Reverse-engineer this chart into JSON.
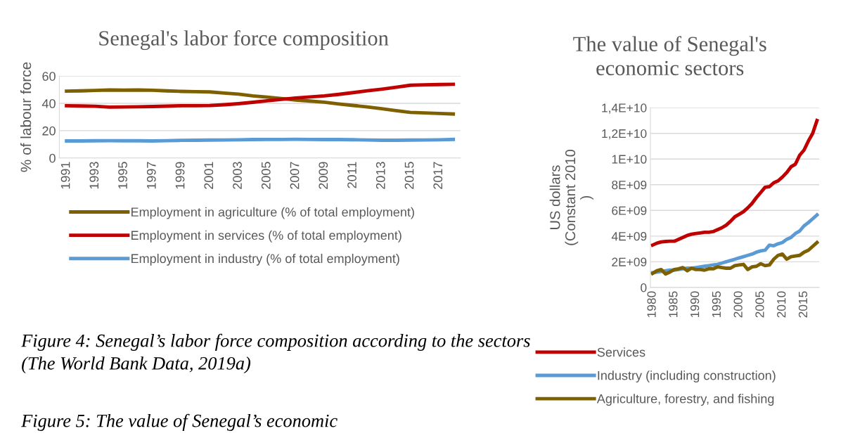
{
  "chart_data": [
    {
      "type": "line",
      "title": "Senegal's labor force composition",
      "ylabel": "% of labour force",
      "categories": [
        "1991",
        null,
        "1993",
        null,
        "1995",
        null,
        "1997",
        null,
        "1999",
        null,
        "2001",
        null,
        "2003",
        null,
        "2005",
        null,
        "2007",
        null,
        "2009",
        null,
        "2011",
        null,
        "2013",
        null,
        "2015",
        null,
        "2017",
        null
      ],
      "series": [
        {
          "name": "Employment in agriculture (% of total employment)",
          "color": "#7f6000",
          "values": [
            49,
            49.2,
            49.5,
            49.8,
            49.7,
            49.8,
            49.6,
            49.2,
            48.8,
            48.6,
            48.4,
            47.6,
            46.8,
            45.5,
            44.6,
            43.6,
            42.5,
            41.7,
            40.9,
            39.6,
            38.5,
            37.4,
            36.1,
            34.7,
            33.4,
            33.0,
            32.6,
            32.2
          ]
        },
        {
          "name": "Employment in services (% of total employment)",
          "color": "#c00000",
          "values": [
            38.3,
            38.1,
            37.9,
            37.3,
            37.4,
            37.5,
            37.7,
            38.0,
            38.3,
            38.3,
            38.4,
            39.0,
            39.8,
            40.8,
            41.9,
            42.9,
            44.0,
            44.7,
            45.5,
            46.6,
            47.9,
            49.2,
            50.4,
            51.8,
            53.3,
            53.6,
            53.8,
            54.0
          ]
        },
        {
          "name": "Employment in industry (% of total employment)",
          "color": "#5b9bd5",
          "values": [
            12.5,
            12.5,
            12.6,
            12.7,
            12.6,
            12.6,
            12.5,
            12.7,
            12.9,
            13.0,
            13.1,
            13.2,
            13.3,
            13.5,
            13.6,
            13.6,
            13.7,
            13.6,
            13.5,
            13.5,
            13.4,
            13.2,
            13.0,
            13.0,
            13.1,
            13.2,
            13.3,
            13.6
          ]
        }
      ],
      "ylim": [
        0,
        60
      ],
      "yticks": [
        0,
        20,
        40,
        60
      ],
      "grid": "y",
      "legend": "bottom",
      "marker": "none",
      "line_style": "solid",
      "annotations": [
        "Figure 4: Senegal’s labor force composition according to the sectors (The World Bank Data, 2019a)",
        "Figure 5: The value of Senegal’s economic"
      ]
    },
    {
      "type": "line",
      "title": "The value of Senegal's\neconomic sectors",
      "ylabel": "US dollars\n(Constant 2010\n)",
      "categories": [
        "1980",
        null,
        null,
        null,
        null,
        "1985",
        null,
        null,
        null,
        null,
        "1990",
        null,
        null,
        null,
        null,
        "1995",
        null,
        null,
        null,
        null,
        "2000",
        null,
        null,
        null,
        null,
        "2005",
        null,
        null,
        null,
        null,
        "2010",
        null,
        null,
        null,
        null,
        "2015",
        null,
        null,
        null
      ],
      "series": [
        {
          "name": "Services",
          "color": "#c00000",
          "values": [
            3300000000,
            3450000000,
            3550000000,
            3580000000,
            3600000000,
            3600000000,
            3750000000,
            3900000000,
            4050000000,
            4150000000,
            4200000000,
            4250000000,
            4300000000,
            4300000000,
            4350000000,
            4500000000,
            4650000000,
            4850000000,
            5150000000,
            5500000000,
            5700000000,
            5900000000,
            6200000000,
            6550000000,
            7000000000,
            7400000000,
            7800000000,
            7850000000,
            8150000000,
            8300000000,
            8600000000,
            8950000000,
            9400000000,
            9600000000,
            10300000000,
            10700000000,
            11400000000,
            12000000000,
            13000000000
          ]
        },
        {
          "name": "Industry (including construction)",
          "color": "#5b9bd5",
          "values": [
            1150000000,
            1200000000,
            1250000000,
            1300000000,
            1350000000,
            1350000000,
            1400000000,
            1450000000,
            1500000000,
            1500000000,
            1550000000,
            1600000000,
            1650000000,
            1700000000,
            1750000000,
            1800000000,
            1900000000,
            2000000000,
            2100000000,
            2200000000,
            2300000000,
            2400000000,
            2500000000,
            2600000000,
            2750000000,
            2850000000,
            2900000000,
            3300000000,
            3250000000,
            3400000000,
            3500000000,
            3750000000,
            3900000000,
            4200000000,
            4400000000,
            4800000000,
            5050000000,
            5350000000,
            5650000000
          ]
        },
        {
          "name": "Agriculture, forestry, and fishing",
          "color": "#7f6000",
          "values": [
            1100000000,
            1300000000,
            1400000000,
            1050000000,
            1200000000,
            1400000000,
            1450000000,
            1550000000,
            1300000000,
            1500000000,
            1400000000,
            1400000000,
            1350000000,
            1450000000,
            1450000000,
            1600000000,
            1550000000,
            1500000000,
            1500000000,
            1700000000,
            1750000000,
            1800000000,
            1400000000,
            1600000000,
            1650000000,
            1850000000,
            1700000000,
            1750000000,
            2200000000,
            2500000000,
            2600000000,
            2200000000,
            2400000000,
            2450000000,
            2500000000,
            2750000000,
            2900000000,
            3200000000,
            3500000000
          ]
        }
      ],
      "ylim": [
        0,
        14000000000
      ],
      "yticks": [
        0,
        {
          "value": 2000000000,
          "label": "2E+09"
        },
        {
          "value": 4000000000,
          "label": "4E+09"
        },
        {
          "value": 6000000000,
          "label": "6E+09"
        },
        {
          "value": 8000000000,
          "label": "8E+09"
        },
        {
          "value": 10000000000,
          "label": "1E+10"
        },
        {
          "value": 12000000000,
          "label": "1,2E+10"
        },
        {
          "value": 14000000000,
          "label": "1,4E+10"
        }
      ],
      "grid": "y",
      "legend": "bottom",
      "marker": "none",
      "line_style": "solid"
    }
  ]
}
